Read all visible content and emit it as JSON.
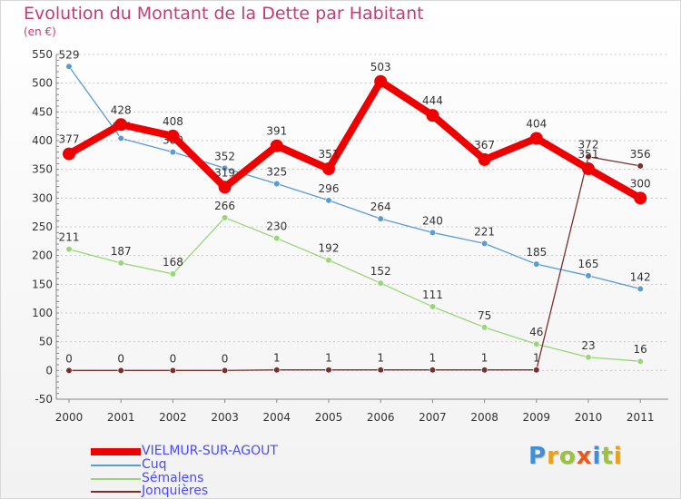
{
  "title": "Evolution du Montant de la Dette par Habitant",
  "subtitle": "(en €)",
  "logo": {
    "letters": [
      "P",
      "r",
      "o",
      "x",
      "i",
      "t",
      "i"
    ],
    "colors": [
      "#3f8fd6",
      "#e8a21a",
      "#9ac23c",
      "#e85a1a",
      "#3f8fd6",
      "#9ac23c",
      "#e8a21a"
    ]
  },
  "chart_data": {
    "type": "line",
    "x": [
      "2000",
      "2001",
      "2002",
      "2003",
      "2004",
      "2005",
      "2006",
      "2007",
      "2008",
      "2009",
      "2010",
      "2011"
    ],
    "ylim": [
      -50,
      550
    ],
    "yticks": [
      -50,
      0,
      50,
      100,
      150,
      200,
      250,
      300,
      350,
      400,
      450,
      500,
      550
    ],
    "grid": "horizontal dashed",
    "legend": "bottom-left",
    "series": [
      {
        "name": "Cuq",
        "color": "#5a9bd4",
        "values": [
          529,
          404,
          380,
          352,
          325,
          296,
          264,
          240,
          221,
          185,
          165,
          142
        ],
        "labels": [
          "529",
          "404",
          "380",
          "352",
          "325",
          "296",
          "264",
          "240",
          "221",
          "185",
          "165",
          "142"
        ]
      },
      {
        "name": "Sémalens",
        "color": "#99d67a",
        "values": [
          211,
          187,
          168,
          266,
          230,
          192,
          152,
          111,
          75,
          46,
          23,
          16
        ],
        "labels": [
          "211",
          "187",
          "168",
          "266",
          "230",
          "192",
          "152",
          "111",
          "75",
          "46",
          "23",
          "16"
        ]
      },
      {
        "name": "Jonquières",
        "color": "#7a2f2f",
        "values": [
          0,
          0,
          0,
          0,
          1,
          1,
          1,
          1,
          1,
          1,
          372,
          356
        ],
        "labels": [
          "0",
          "0",
          "0",
          "0",
          "1",
          "1",
          "1",
          "1",
          "1",
          "1",
          "372",
          "356"
        ]
      },
      {
        "name": "VIELMUR-SUR-AGOUT",
        "color": "#ee0000",
        "values": [
          377,
          428,
          408,
          319,
          391,
          351,
          503,
          444,
          367,
          404,
          351,
          300
        ],
        "labels": [
          "377",
          "428",
          "408",
          "319",
          "391",
          "351",
          "503",
          "444",
          "367",
          "404",
          "351",
          "300"
        ]
      }
    ],
    "legend_order": [
      "VIELMUR-SUR-AGOUT",
      "Cuq",
      "Sémalens",
      "Jonquières"
    ]
  }
}
